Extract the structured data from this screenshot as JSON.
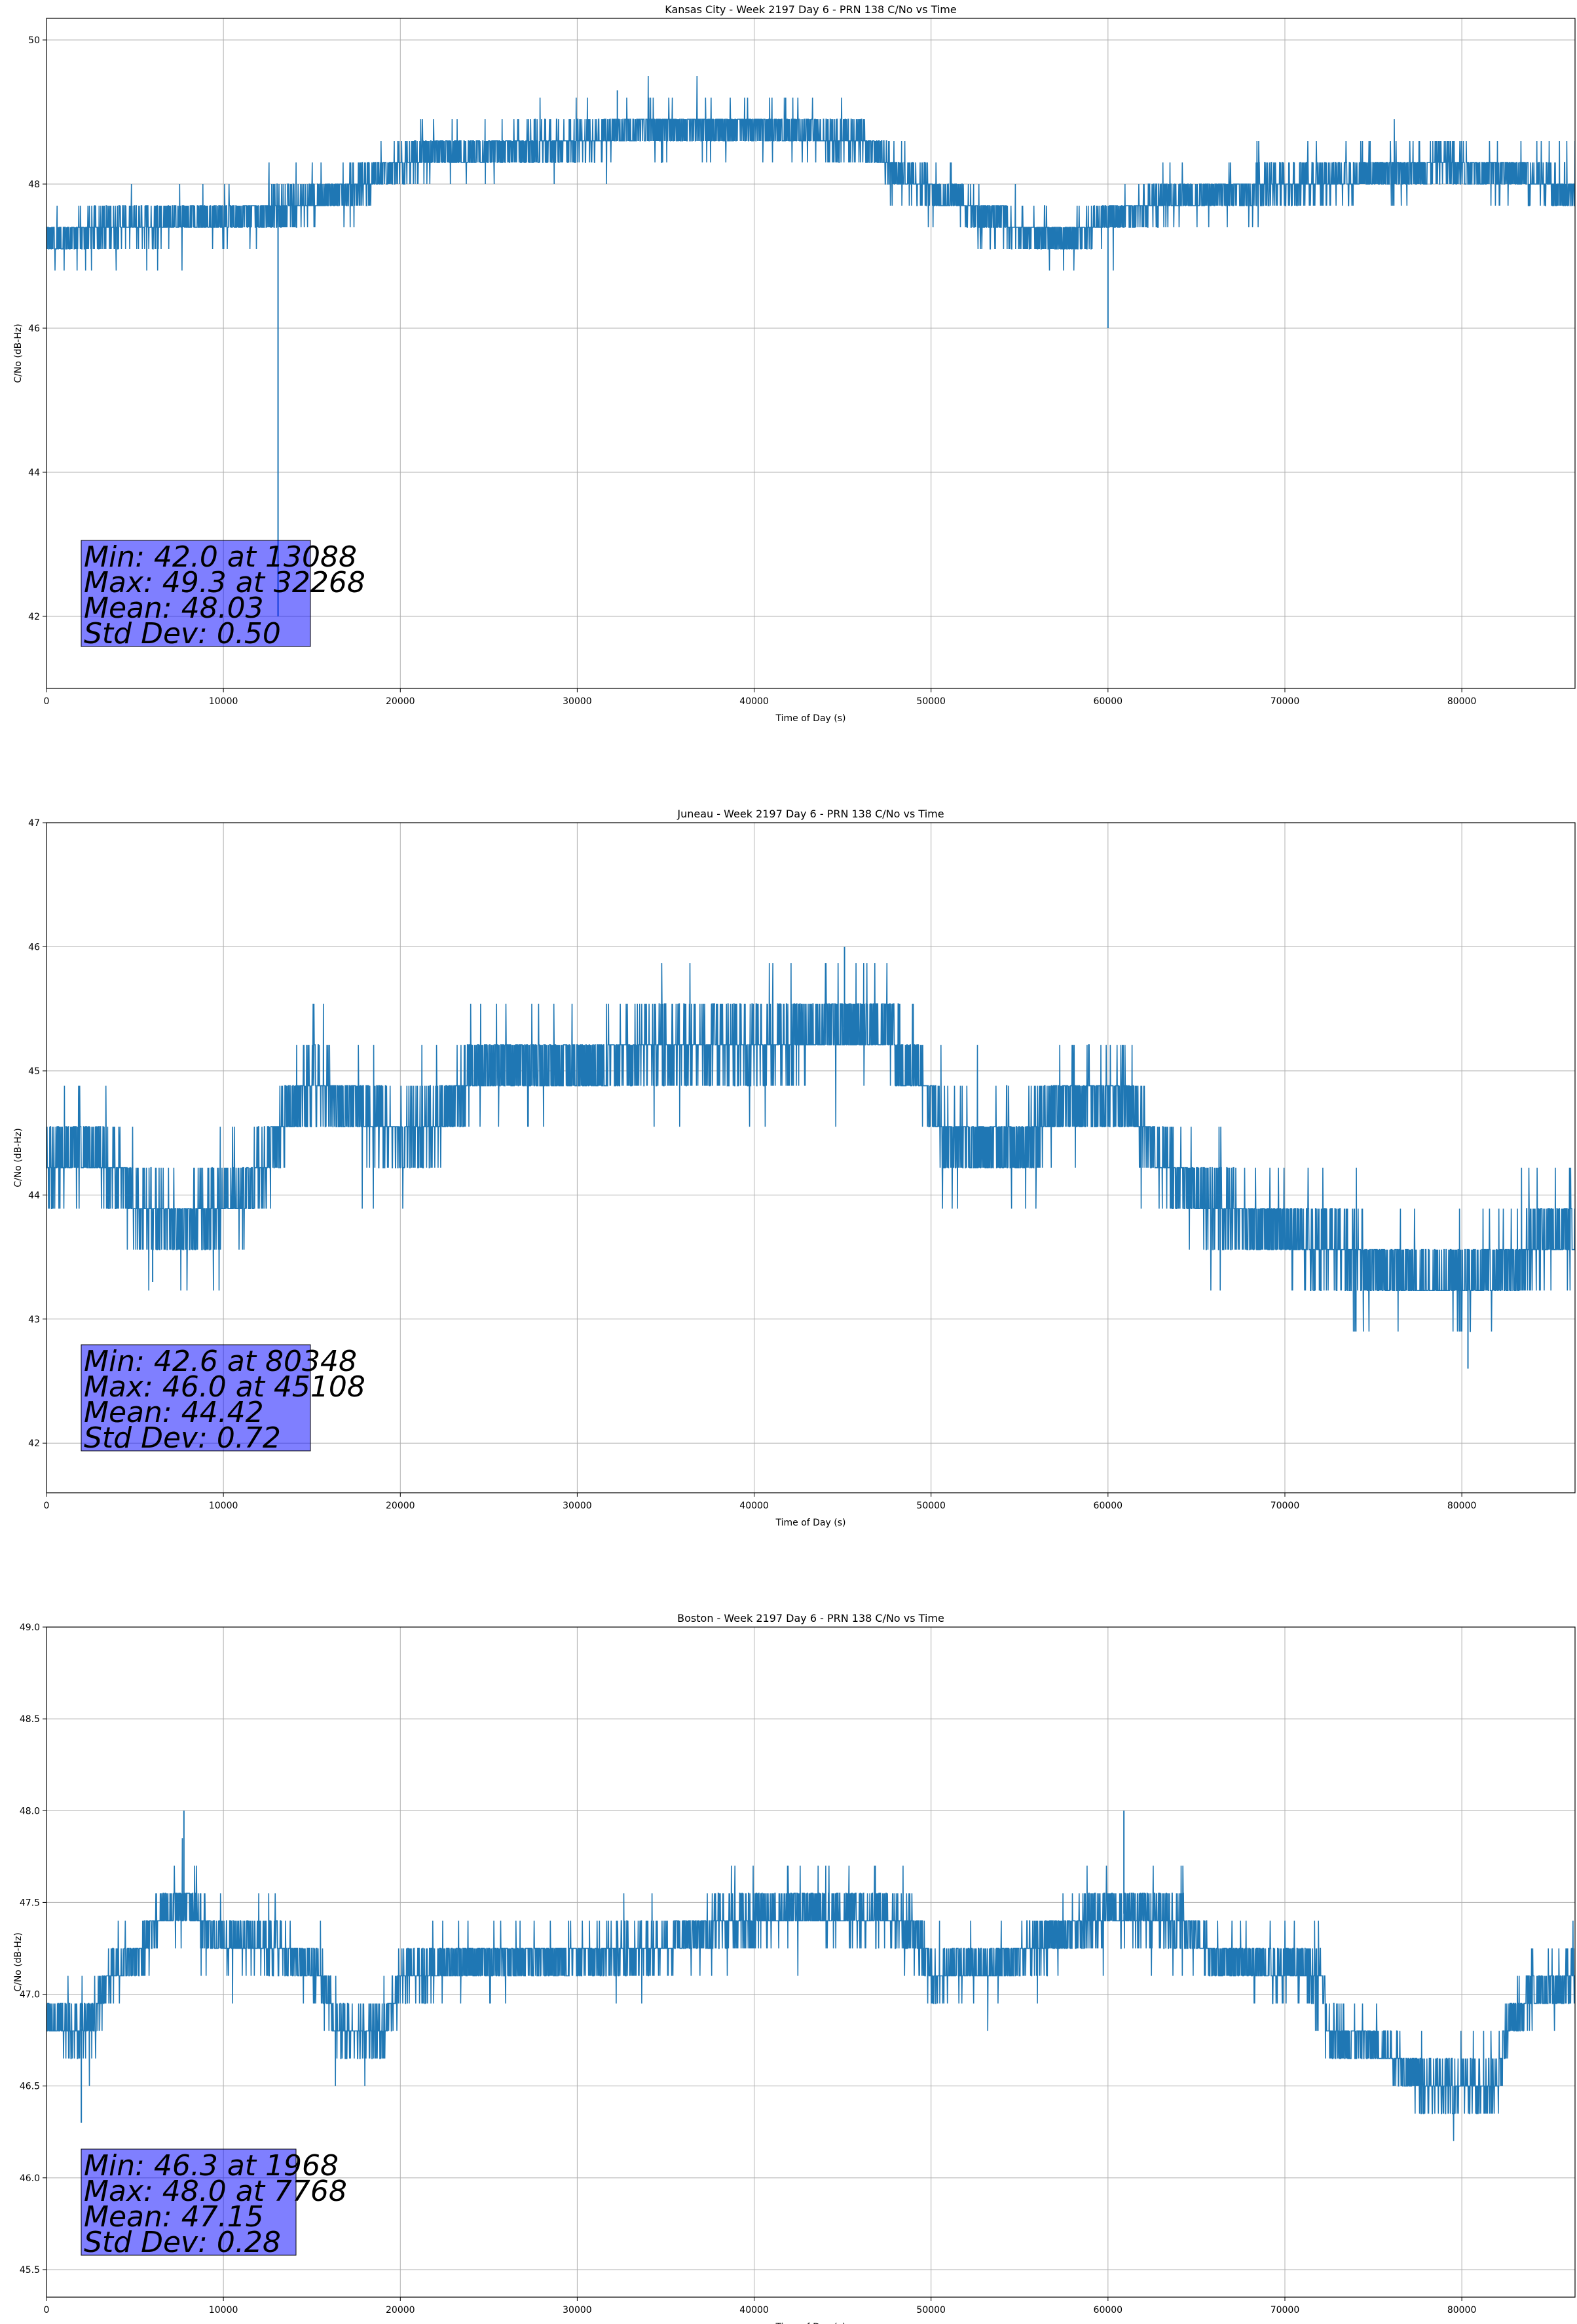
{
  "chart_data": [
    {
      "type": "line",
      "title": "Kansas City - Week 2197 Day 6 - PRN 138 C/No vs Time",
      "xlabel": "Time of Day (s)",
      "ylabel": "C/No (dB-Hz)",
      "xlim": [
        0,
        86400
      ],
      "ylim": [
        41,
        50.3
      ],
      "xticks": [
        0,
        10000,
        20000,
        30000,
        40000,
        50000,
        60000,
        70000,
        80000
      ],
      "yticks": [
        42,
        44,
        46,
        48,
        50
      ],
      "xtick_labels": [
        "0",
        "10000",
        "20000",
        "30000",
        "40000",
        "50000",
        "60000",
        "70000",
        "80000"
      ],
      "ytick_labels": [
        "42",
        "44",
        "46",
        "48",
        "50"
      ],
      "grid": true,
      "series_color": "#1f77b4",
      "trend": [
        [
          0,
          47.2
        ],
        [
          3000,
          47.4
        ],
        [
          8000,
          47.5
        ],
        [
          12000,
          47.6
        ],
        [
          14000,
          47.7
        ],
        [
          17000,
          47.9
        ],
        [
          19500,
          48.2
        ],
        [
          22000,
          48.4
        ],
        [
          26000,
          48.5
        ],
        [
          30000,
          48.6
        ],
        [
          34000,
          48.8
        ],
        [
          40000,
          48.8
        ],
        [
          46000,
          48.6
        ],
        [
          48000,
          48.2
        ],
        [
          50000,
          47.9
        ],
        [
          53000,
          47.6
        ],
        [
          56000,
          47.3
        ],
        [
          58000,
          47.3
        ],
        [
          61000,
          47.6
        ],
        [
          64000,
          47.8
        ],
        [
          67000,
          47.9
        ],
        [
          70000,
          48.0
        ],
        [
          74000,
          48.1
        ],
        [
          79000,
          48.3
        ],
        [
          82000,
          48.2
        ],
        [
          86400,
          47.9
        ]
      ],
      "spikes": [
        [
          13088,
          42.0
        ],
        [
          60000,
          46.0
        ],
        [
          32268,
          49.3
        ]
      ],
      "stats": {
        "min": "Min: 42.0 at 13088",
        "max": "Max: 49.3 at 32268",
        "mean": "Mean: 48.03",
        "std": "Std Dev: 0.50"
      }
    },
    {
      "type": "line",
      "title": "Juneau - Week 2197 Day 6 - PRN 138 C/No vs Time",
      "xlabel": "Time of Day (s)",
      "ylabel": "C/No (dB-Hz)",
      "xlim": [
        0,
        86400
      ],
      "ylim": [
        41.6,
        47
      ],
      "xticks": [
        0,
        10000,
        20000,
        30000,
        40000,
        50000,
        60000,
        70000,
        80000
      ],
      "yticks": [
        42,
        43,
        44,
        45,
        46,
        47
      ],
      "xtick_labels": [
        "0",
        "10000",
        "20000",
        "30000",
        "40000",
        "50000",
        "60000",
        "70000",
        "80000"
      ],
      "ytick_labels": [
        "42",
        "43",
        "44",
        "45",
        "46",
        "47"
      ],
      "grid": true,
      "series_color": "#1f77b4",
      "trend": [
        [
          0,
          44.2
        ],
        [
          2000,
          44.4
        ],
        [
          4000,
          44.2
        ],
        [
          5000,
          43.9
        ],
        [
          8000,
          43.8
        ],
        [
          10000,
          43.9
        ],
        [
          12000,
          44.2
        ],
        [
          13000,
          44.5
        ],
        [
          15000,
          44.9
        ],
        [
          17000,
          44.7
        ],
        [
          20000,
          44.5
        ],
        [
          22000,
          44.6
        ],
        [
          24000,
          45.0
        ],
        [
          27000,
          45.1
        ],
        [
          30000,
          45.0
        ],
        [
          34000,
          45.2
        ],
        [
          40000,
          45.2
        ],
        [
          43000,
          45.3
        ],
        [
          47000,
          45.4
        ],
        [
          49000,
          45.0
        ],
        [
          51000,
          44.5
        ],
        [
          55000,
          44.4
        ],
        [
          58000,
          44.8
        ],
        [
          61000,
          44.8
        ],
        [
          63000,
          44.3
        ],
        [
          65000,
          44.0
        ],
        [
          68000,
          43.8
        ],
        [
          72000,
          43.6
        ],
        [
          76000,
          43.4
        ],
        [
          80000,
          43.3
        ],
        [
          82000,
          43.4
        ],
        [
          84000,
          43.6
        ],
        [
          86400,
          43.7
        ]
      ],
      "spikes": [
        [
          45108,
          46.0
        ],
        [
          80348,
          42.6
        ],
        [
          6000,
          43.3
        ]
      ],
      "stats": {
        "min": "Min: 42.6 at 80348",
        "max": "Max: 46.0 at 45108",
        "mean": "Mean: 44.42",
        "std": "Std Dev: 0.72"
      }
    },
    {
      "type": "line",
      "title": "Boston - Week 2197 Day 6 - PRN 138 C/No vs Time",
      "xlabel": "Time of Day (s)",
      "ylabel": "C/No (dB-Hz)",
      "xlim": [
        0,
        86400
      ],
      "ylim": [
        45.35,
        49
      ],
      "xticks": [
        0,
        10000,
        20000,
        30000,
        40000,
        50000,
        60000,
        70000,
        80000
      ],
      "yticks": [
        45.5,
        46.0,
        46.5,
        47.0,
        47.5,
        48.0,
        48.5,
        49.0
      ],
      "xtick_labels": [
        "0",
        "10000",
        "20000",
        "30000",
        "40000",
        "50000",
        "60000",
        "70000",
        "80000"
      ],
      "ytick_labels": [
        "45.5",
        "46.0",
        "46.5",
        "47.0",
        "47.5",
        "48.0",
        "48.5",
        "49.0"
      ],
      "grid": true,
      "series_color": "#1f77b4",
      "trend": [
        [
          0,
          46.85
        ],
        [
          2500,
          46.8
        ],
        [
          3500,
          47.1
        ],
        [
          5000,
          47.2
        ],
        [
          6500,
          47.45
        ],
        [
          8000,
          47.5
        ],
        [
          10000,
          47.3
        ],
        [
          13000,
          47.25
        ],
        [
          15500,
          47.1
        ],
        [
          16500,
          46.8
        ],
        [
          19000,
          46.8
        ],
        [
          20000,
          47.1
        ],
        [
          25000,
          47.2
        ],
        [
          30000,
          47.2
        ],
        [
          35000,
          47.25
        ],
        [
          38000,
          47.4
        ],
        [
          43000,
          47.45
        ],
        [
          49000,
          47.4
        ],
        [
          50000,
          47.1
        ],
        [
          55000,
          47.2
        ],
        [
          57000,
          47.3
        ],
        [
          60000,
          47.45
        ],
        [
          64000,
          47.4
        ],
        [
          66000,
          47.2
        ],
        [
          72000,
          47.1
        ],
        [
          72500,
          46.8
        ],
        [
          76000,
          46.7
        ],
        [
          78000,
          46.5
        ],
        [
          82000,
          46.5
        ],
        [
          82500,
          46.8
        ],
        [
          84000,
          47.0
        ],
        [
          86400,
          47.1
        ]
      ],
      "spikes": [
        [
          1968,
          46.3
        ],
        [
          7768,
          48.0
        ],
        [
          60900,
          48.0
        ]
      ],
      "stats": {
        "min": "Min: 46.3 at 1968",
        "max": "Max: 48.0 at 7768",
        "mean": "Mean: 47.15",
        "std": "Std Dev: 0.28"
      }
    }
  ]
}
